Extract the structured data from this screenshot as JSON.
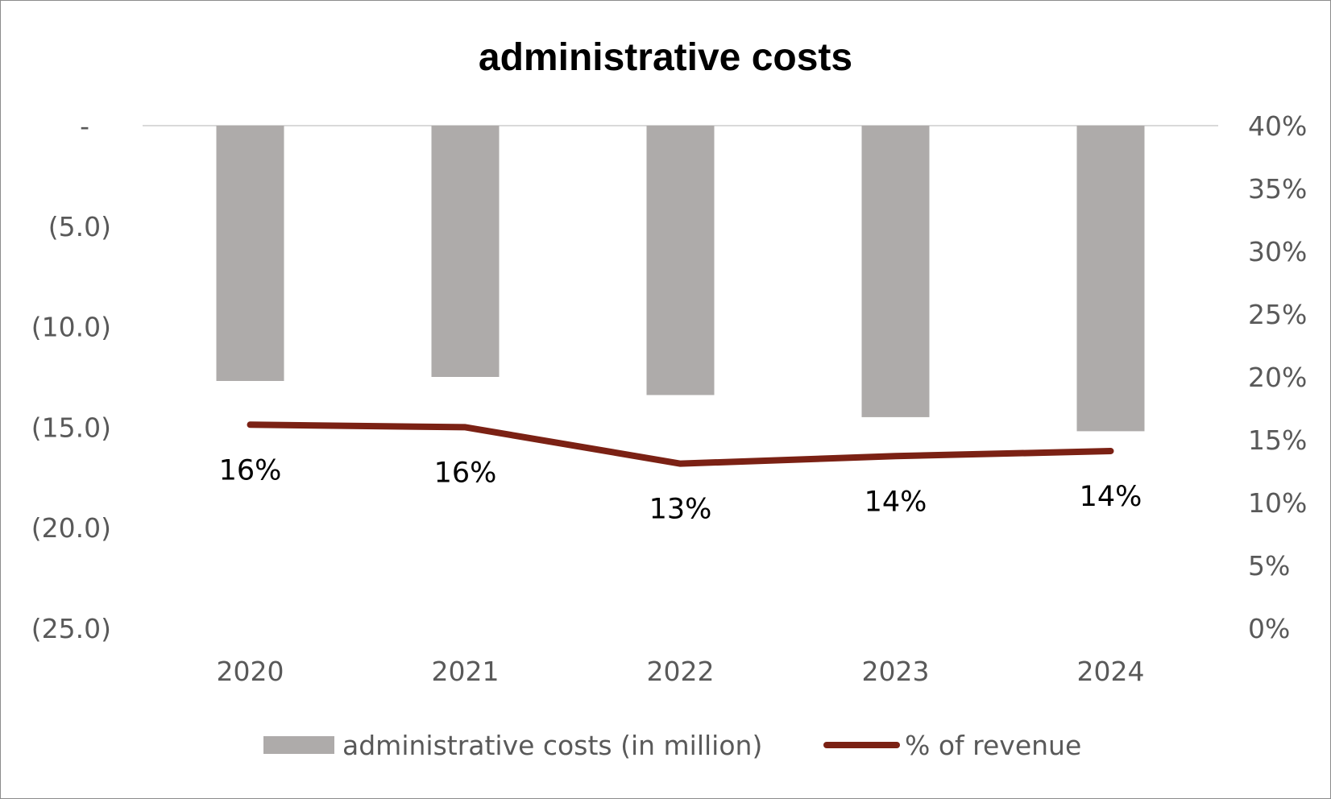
{
  "chart_data": {
    "type": "bar",
    "title": "administrative costs",
    "categories": [
      "2020",
      "2021",
      "2022",
      "2023",
      "2024"
    ],
    "series": [
      {
        "name": "administrative costs (in million)",
        "kind": "bar",
        "axis": "left",
        "values": [
          -12.7,
          -12.5,
          -13.4,
          -14.5,
          -15.2
        ]
      },
      {
        "name": "% of revenue",
        "kind": "line",
        "axis": "right",
        "values": [
          16.2,
          16.0,
          13.1,
          13.7,
          14.1
        ],
        "data_labels": [
          "16%",
          "16%",
          "13%",
          "14%",
          "14%"
        ]
      }
    ],
    "y_left": {
      "ylim": [
        -25,
        0
      ],
      "ticks": [
        0,
        -5,
        -10,
        -15,
        -20,
        -25
      ],
      "tick_labels": [
        "-",
        "(5.0)",
        "(10.0)",
        "(15.0)",
        "(20.0)",
        "(25.0)"
      ]
    },
    "y_right": {
      "ylim": [
        0,
        40
      ],
      "ticks": [
        40,
        35,
        30,
        25,
        20,
        15,
        10,
        5,
        0
      ],
      "tick_labels": [
        "40%",
        "35%",
        "30%",
        "25%",
        "20%",
        "15%",
        "10%",
        "5%",
        "0%"
      ]
    },
    "grid": false,
    "legend_position": "bottom",
    "colors": {
      "bar": "#aeabaa",
      "line": "#7b2114",
      "zero_line": "#d9d9d9",
      "tick_text": "#595959",
      "title": "#000000"
    }
  }
}
